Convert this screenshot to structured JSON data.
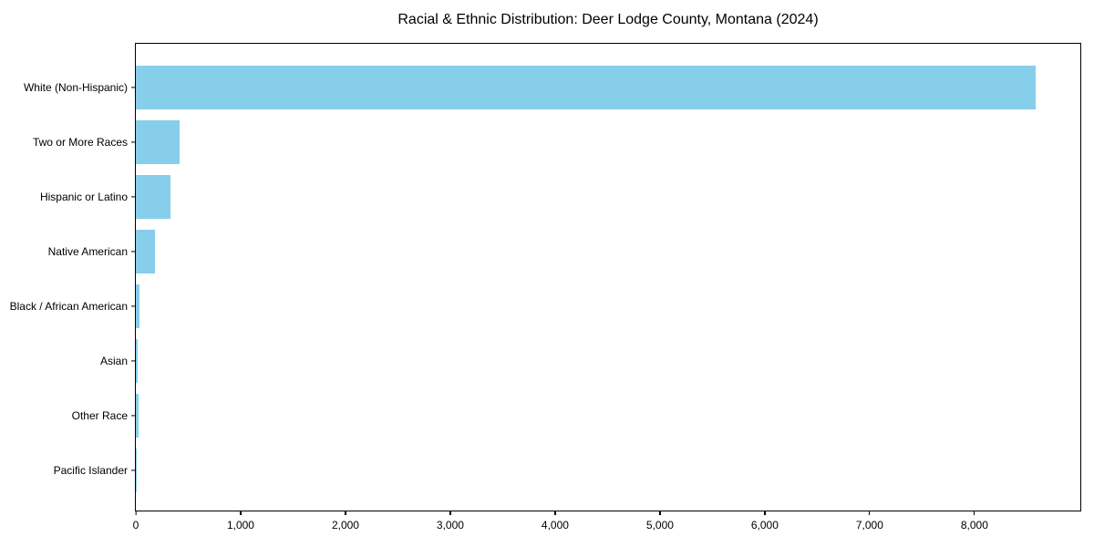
{
  "chart_data": {
    "type": "bar",
    "orientation": "horizontal",
    "title": "Racial & Ethnic Distribution: Deer Lodge County, Montana (2024)",
    "categories": [
      "White (Non-Hispanic)",
      "Two or More Races",
      "Hispanic or Latino",
      "Native American",
      "Black / African American",
      "Asian",
      "Other Race",
      "Pacific Islander"
    ],
    "values": [
      8580,
      420,
      330,
      185,
      35,
      20,
      25,
      5
    ],
    "bar_color": "#87CEEB",
    "xlabel": "",
    "ylabel": "",
    "xlim": [
      0,
      9010
    ],
    "xticks": {
      "values": [
        0,
        1000,
        2000,
        3000,
        4000,
        5000,
        6000,
        7000,
        8000
      ],
      "labels": [
        "0",
        "1,000",
        "2,000",
        "3,000",
        "4,000",
        "5,000",
        "6,000",
        "7,000",
        "8,000"
      ]
    },
    "grid": false,
    "legend": "none",
    "background_color": "#ffffff",
    "axis_color": "#000000"
  }
}
